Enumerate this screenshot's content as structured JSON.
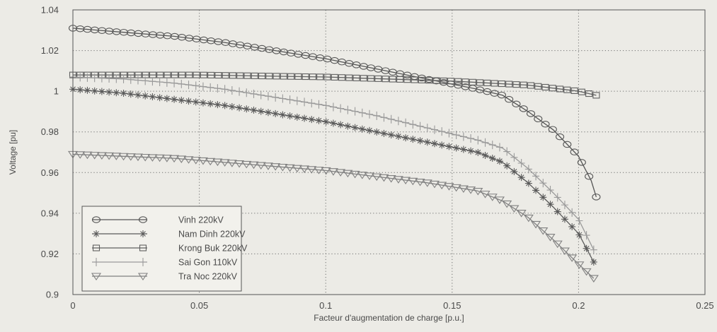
{
  "chart_data": {
    "type": "line",
    "title": "",
    "xlabel": "Facteur d'augmentation de charge [p.u.]",
    "ylabel": "Voltage [pu]",
    "xlim": [
      0,
      0.25
    ],
    "ylim": [
      0.9,
      1.04
    ],
    "xticks": [
      0,
      0.05,
      0.1,
      0.15,
      0.2,
      0.25
    ],
    "xtick_labels": [
      "0",
      "0.05",
      "0.1",
      "0.15",
      "0.2",
      "0.25"
    ],
    "yticks": [
      0.9,
      0.92,
      0.94,
      0.96,
      0.98,
      1.0,
      1.02,
      1.04
    ],
    "ytick_labels": [
      "0.9",
      "0.92",
      "0.94",
      "0.96",
      "0.98",
      "1",
      "1.02",
      "1.04"
    ],
    "grid": true,
    "legend_position": "lower-left",
    "series": [
      {
        "name": "Vinh 220kV",
        "marker": "circle",
        "color": "#555555",
        "points": [
          [
            0,
            1.031
          ],
          [
            0.02,
            1.029
          ],
          [
            0.04,
            1.027
          ],
          [
            0.06,
            1.024
          ],
          [
            0.08,
            1.02
          ],
          [
            0.1,
            1.016
          ],
          [
            0.12,
            1.011
          ],
          [
            0.14,
            1.006
          ],
          [
            0.16,
            1.001
          ],
          [
            0.17,
            0.998
          ],
          [
            0.18,
            0.99
          ],
          [
            0.19,
            0.981
          ],
          [
            0.2,
            0.968
          ],
          [
            0.205,
            0.956
          ],
          [
            0.207,
            0.948
          ]
        ]
      },
      {
        "name": "Nam Dinh 220kV",
        "marker": "star",
        "color": "#5a5a5a",
        "points": [
          [
            0,
            1.001
          ],
          [
            0.02,
            0.999
          ],
          [
            0.04,
            0.996
          ],
          [
            0.06,
            0.993
          ],
          [
            0.08,
            0.989
          ],
          [
            0.1,
            0.985
          ],
          [
            0.12,
            0.98
          ],
          [
            0.14,
            0.975
          ],
          [
            0.16,
            0.97
          ],
          [
            0.17,
            0.965
          ],
          [
            0.18,
            0.955
          ],
          [
            0.19,
            0.943
          ],
          [
            0.2,
            0.93
          ],
          [
            0.206,
            0.916
          ]
        ]
      },
      {
        "name": "Krong Buk 220kV",
        "marker": "square",
        "color": "#606060",
        "points": [
          [
            0,
            1.008
          ],
          [
            0.05,
            1.008
          ],
          [
            0.1,
            1.007
          ],
          [
            0.15,
            1.005
          ],
          [
            0.18,
            1.003
          ],
          [
            0.2,
            1.0
          ],
          [
            0.207,
            0.998
          ]
        ]
      },
      {
        "name": "Sai Gon 110kV",
        "marker": "plus",
        "color": "#9a9a9a",
        "points": [
          [
            0,
            1.007
          ],
          [
            0.02,
            1.006
          ],
          [
            0.04,
            1.004
          ],
          [
            0.06,
            1.001
          ],
          [
            0.08,
            0.997
          ],
          [
            0.1,
            0.993
          ],
          [
            0.12,
            0.988
          ],
          [
            0.14,
            0.982
          ],
          [
            0.16,
            0.976
          ],
          [
            0.17,
            0.972
          ],
          [
            0.18,
            0.962
          ],
          [
            0.19,
            0.95
          ],
          [
            0.2,
            0.937
          ],
          [
            0.206,
            0.922
          ]
        ]
      },
      {
        "name": "Tra Noc 220kV",
        "marker": "triangle-down",
        "color": "#808080",
        "points": [
          [
            0,
            0.969
          ],
          [
            0.02,
            0.968
          ],
          [
            0.04,
            0.967
          ],
          [
            0.06,
            0.965
          ],
          [
            0.08,
            0.963
          ],
          [
            0.1,
            0.961
          ],
          [
            0.12,
            0.958
          ],
          [
            0.14,
            0.955
          ],
          [
            0.16,
            0.951
          ],
          [
            0.17,
            0.946
          ],
          [
            0.18,
            0.938
          ],
          [
            0.19,
            0.927
          ],
          [
            0.2,
            0.915
          ],
          [
            0.206,
            0.908
          ]
        ]
      }
    ]
  }
}
